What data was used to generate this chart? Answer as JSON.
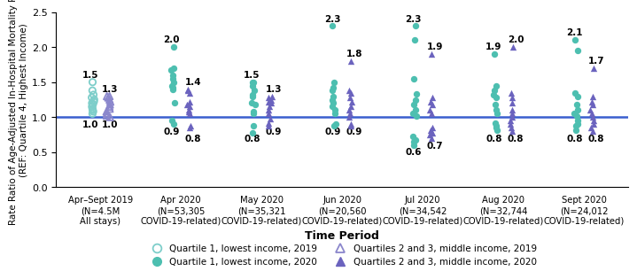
{
  "ylabel": "Rate Ratio of Age-Adjusted In-Hospital Mortality Rates\n(REF: Quartile 4, Highest Income)",
  "xlabel": "Time Period",
  "ylim": [
    0.0,
    2.5
  ],
  "yticks": [
    0.0,
    0.5,
    1.0,
    1.5,
    2.0,
    2.5
  ],
  "x_positions": [
    0,
    1,
    2,
    3,
    4,
    5,
    6
  ],
  "x_labels": [
    "Apr–Sept 2019\n(N=4.5M\nAll stays)",
    "Apr 2020\n(N=53,305\nCOVID-19-related)",
    "May 2020\n(N=35,321\nCOVID-19-related)",
    "Jun 2020\n(N=20,560\nCOVID-19-related)",
    "Jul 2020\n(N=34,542\nCOVID-19-related)",
    "Aug 2020\n(N=32,744\nCOVID-19-related)",
    "Sept 2020\n(N=24,012\nCOVID-19-related)"
  ],
  "c_q1_2019": "#7ececa",
  "c_q1_2020": "#4dbfb0",
  "c_q23_2019": "#8b87cc",
  "c_q23_2020": "#6b63be",
  "ref_line_color": "#3a5fcf",
  "q1_2019_vals": [
    1.05,
    1.08,
    1.1,
    1.12,
    1.15,
    1.18,
    1.2,
    1.22,
    1.25,
    1.28,
    1.32,
    1.38,
    1.5
  ],
  "q23_2019_vals": [
    1.0,
    1.02,
    1.05,
    1.08,
    1.12,
    1.15,
    1.18,
    1.22,
    1.25,
    1.28,
    1.3,
    1.3
  ],
  "q1_2020_vals": [
    [
      0.9,
      0.95,
      1.2,
      1.4,
      1.42,
      1.45,
      1.5,
      1.55,
      1.6,
      1.68,
      1.7,
      2.0
    ],
    [
      0.78,
      0.88,
      1.05,
      1.08,
      1.18,
      1.2,
      1.3,
      1.32,
      1.38,
      1.45,
      1.5,
      1.5
    ],
    [
      0.88,
      0.9,
      1.05,
      1.1,
      1.15,
      1.2,
      1.25,
      1.3,
      1.38,
      1.42,
      1.5,
      2.3
    ],
    [
      0.6,
      0.65,
      0.68,
      0.72,
      1.02,
      1.05,
      1.1,
      1.18,
      1.25,
      1.33,
      1.55,
      2.1,
      2.3
    ],
    [
      0.82,
      0.85,
      0.88,
      0.92,
      1.05,
      1.1,
      1.18,
      1.28,
      1.32,
      1.38,
      1.45,
      1.9
    ],
    [
      0.82,
      0.88,
      0.9,
      0.95,
      1.02,
      1.05,
      1.1,
      1.18,
      1.3,
      1.35,
      1.95,
      2.1
    ]
  ],
  "q23_2020_vals": [
    [
      0.85,
      0.88,
      1.05,
      1.08,
      1.1,
      1.15,
      1.18,
      1.22,
      1.35,
      1.38,
      1.4
    ],
    [
      0.88,
      0.92,
      0.98,
      1.05,
      1.1,
      1.15,
      1.2,
      1.22,
      1.25,
      1.28,
      1.3
    ],
    [
      0.88,
      0.9,
      1.0,
      1.05,
      1.1,
      1.15,
      1.22,
      1.28,
      1.35,
      1.38,
      1.8
    ],
    [
      0.7,
      0.75,
      0.78,
      0.82,
      0.85,
      1.05,
      1.1,
      1.18,
      1.22,
      1.28,
      1.9
    ],
    [
      0.8,
      0.85,
      0.9,
      0.95,
      1.0,
      1.05,
      1.1,
      1.2,
      1.28,
      1.35,
      2.0
    ],
    [
      0.8,
      0.85,
      0.9,
      0.95,
      1.0,
      1.05,
      1.1,
      1.18,
      1.22,
      1.3,
      1.7
    ]
  ],
  "ann_q1_max": [
    1.5,
    2.0,
    1.5,
    2.3,
    2.3,
    1.9,
    2.1
  ],
  "ann_q1_min": [
    1.0,
    0.9,
    0.8,
    0.9,
    0.6,
    0.8,
    0.8
  ],
  "ann_q23_max": [
    1.3,
    1.4,
    1.3,
    1.8,
    1.9,
    2.0,
    1.7
  ],
  "ann_q23_min": [
    1.0,
    0.8,
    0.9,
    0.9,
    0.7,
    0.8,
    0.8
  ]
}
